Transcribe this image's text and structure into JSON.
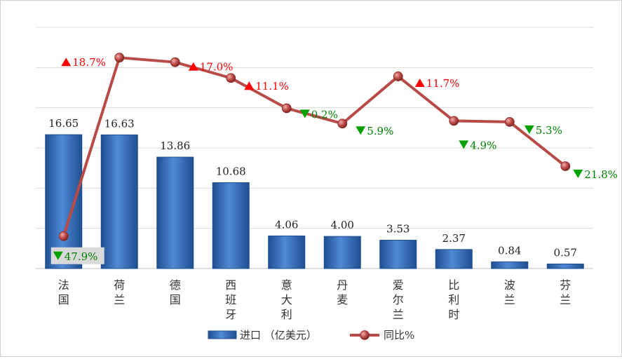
{
  "chart_data": {
    "type": "bar+line",
    "categories": [
      [
        "法",
        "国"
      ],
      [
        "荷",
        "兰"
      ],
      [
        "德",
        "国"
      ],
      [
        "西",
        "班",
        "牙"
      ],
      [
        "意",
        "大",
        "利"
      ],
      [
        "丹",
        "麦"
      ],
      [
        "爱",
        "尔",
        "兰"
      ],
      [
        "比",
        "利",
        "时"
      ],
      [
        "波",
        "兰"
      ],
      [
        "芬",
        "兰"
      ]
    ],
    "series": [
      {
        "name": "进口 （亿美元）",
        "type": "bar",
        "axis": "left",
        "values": [
          16.65,
          16.63,
          13.86,
          10.68,
          4.06,
          4.0,
          3.53,
          2.37,
          0.84,
          0.57
        ],
        "labels": [
          "16.65",
          "16.63",
          "13.86",
          "10.68",
          "4.06",
          "4.00",
          "3.53",
          "2.37",
          "0.84",
          "0.57"
        ]
      },
      {
        "name": "同比%",
        "type": "line",
        "axis": "right",
        "values": [
          -47.9,
          18.7,
          17.0,
          11.1,
          -0.2,
          -5.9,
          11.7,
          -4.9,
          -5.3,
          -21.8
        ],
        "labels": [
          "47.9%",
          "18.7%",
          "17.0%",
          "11.1%",
          "0.2%",
          "5.9%",
          "11.7%",
          "4.9%",
          "5.3%",
          "21.8%"
        ],
        "directions": [
          "down",
          "up",
          "up",
          "up",
          "down",
          "down",
          "up",
          "down",
          "down",
          "down"
        ]
      }
    ],
    "left_axis_range": [
      0,
      30
    ],
    "right_axis_range": [
      -60,
      30
    ],
    "grid": true,
    "legend_position": "bottom",
    "colors": {
      "bar": "#3f78c0",
      "bar_dark": "#1f4f8f",
      "line": "#b84a47",
      "marker": "#c0504d",
      "up_arrow": "#ff0000",
      "up_text": "#ff0000",
      "down_arrow": "#00a000",
      "down_text": "#008000",
      "grid": "#d9d9d9"
    },
    "icons": {
      "up": "triangle-up-icon",
      "down": "triangle-down-icon"
    }
  }
}
